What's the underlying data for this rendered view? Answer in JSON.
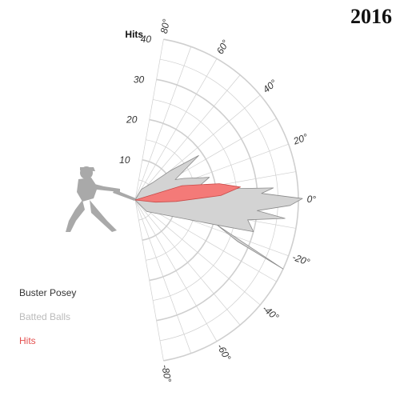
{
  "year_label": "2016",
  "legend": {
    "player": "Buster Posey",
    "batted": "Batted Balls",
    "hits": "Hits"
  },
  "colors": {
    "batted_fill": "#d3d3d3",
    "batted_stroke": "#8a8a8a",
    "hits_fill": "#f47a78",
    "hits_stroke": "#c94a48",
    "grid": "#cfcfcf",
    "silhouette": "#a9a9a9"
  },
  "icons": {
    "batter": "batter-silhouette-icon"
  },
  "chart_data": {
    "type": "polar-area",
    "radial_axis": {
      "title": "Hits",
      "ticks": [
        10,
        20,
        30,
        40
      ],
      "range": [
        0,
        40
      ]
    },
    "angular_axis": {
      "unit": "degrees",
      "range": [
        -80,
        80
      ],
      "labeled_ticks": [
        80,
        60,
        40,
        20,
        0,
        -20,
        -40,
        -60,
        -80
      ],
      "tick_labels": [
        "80°",
        "60°",
        "40°",
        "20°",
        "0°",
        "-20°",
        "-40°",
        "-60°",
        "-80°"
      ]
    },
    "series": [
      {
        "name": "Batted Balls",
        "points": [
          {
            "angle": 80,
            "r": 0
          },
          {
            "angle": 60,
            "r": 3
          },
          {
            "angle": 45,
            "r": 6
          },
          {
            "angle": 40,
            "r": 11
          },
          {
            "angle": 35,
            "r": 19
          },
          {
            "angle": 27,
            "r": 11
          },
          {
            "angle": 24,
            "r": 13
          },
          {
            "angle": 17,
            "r": 19
          },
          {
            "angle": 10,
            "r": 15
          },
          {
            "angle": 5,
            "r": 34
          },
          {
            "angle": 3,
            "r": 31
          },
          {
            "angle": 0.5,
            "r": 41
          },
          {
            "angle": -2,
            "r": 38
          },
          {
            "angle": -5,
            "r": 30
          },
          {
            "angle": -7,
            "r": 37
          },
          {
            "angle": -10,
            "r": 28
          },
          {
            "angle": -15,
            "r": 30
          },
          {
            "angle": -17,
            "r": 21
          },
          {
            "angle": -25,
            "r": 40
          },
          {
            "angle": -22,
            "r": 27
          },
          {
            "angle": -17,
            "r": 21
          },
          {
            "angle": -45,
            "r": 4
          },
          {
            "angle": -80,
            "r": 0
          }
        ]
      },
      {
        "name": "Hits",
        "points": [
          {
            "angle": 80,
            "r": 0
          },
          {
            "angle": 17,
            "r": 12
          },
          {
            "angle": 11,
            "r": 21
          },
          {
            "angle": 7,
            "r": 26
          },
          {
            "angle": 3,
            "r": 21
          },
          {
            "angle": -2,
            "r": 10
          },
          {
            "angle": -6,
            "r": 5
          },
          {
            "angle": -80,
            "r": 0
          }
        ]
      }
    ]
  }
}
